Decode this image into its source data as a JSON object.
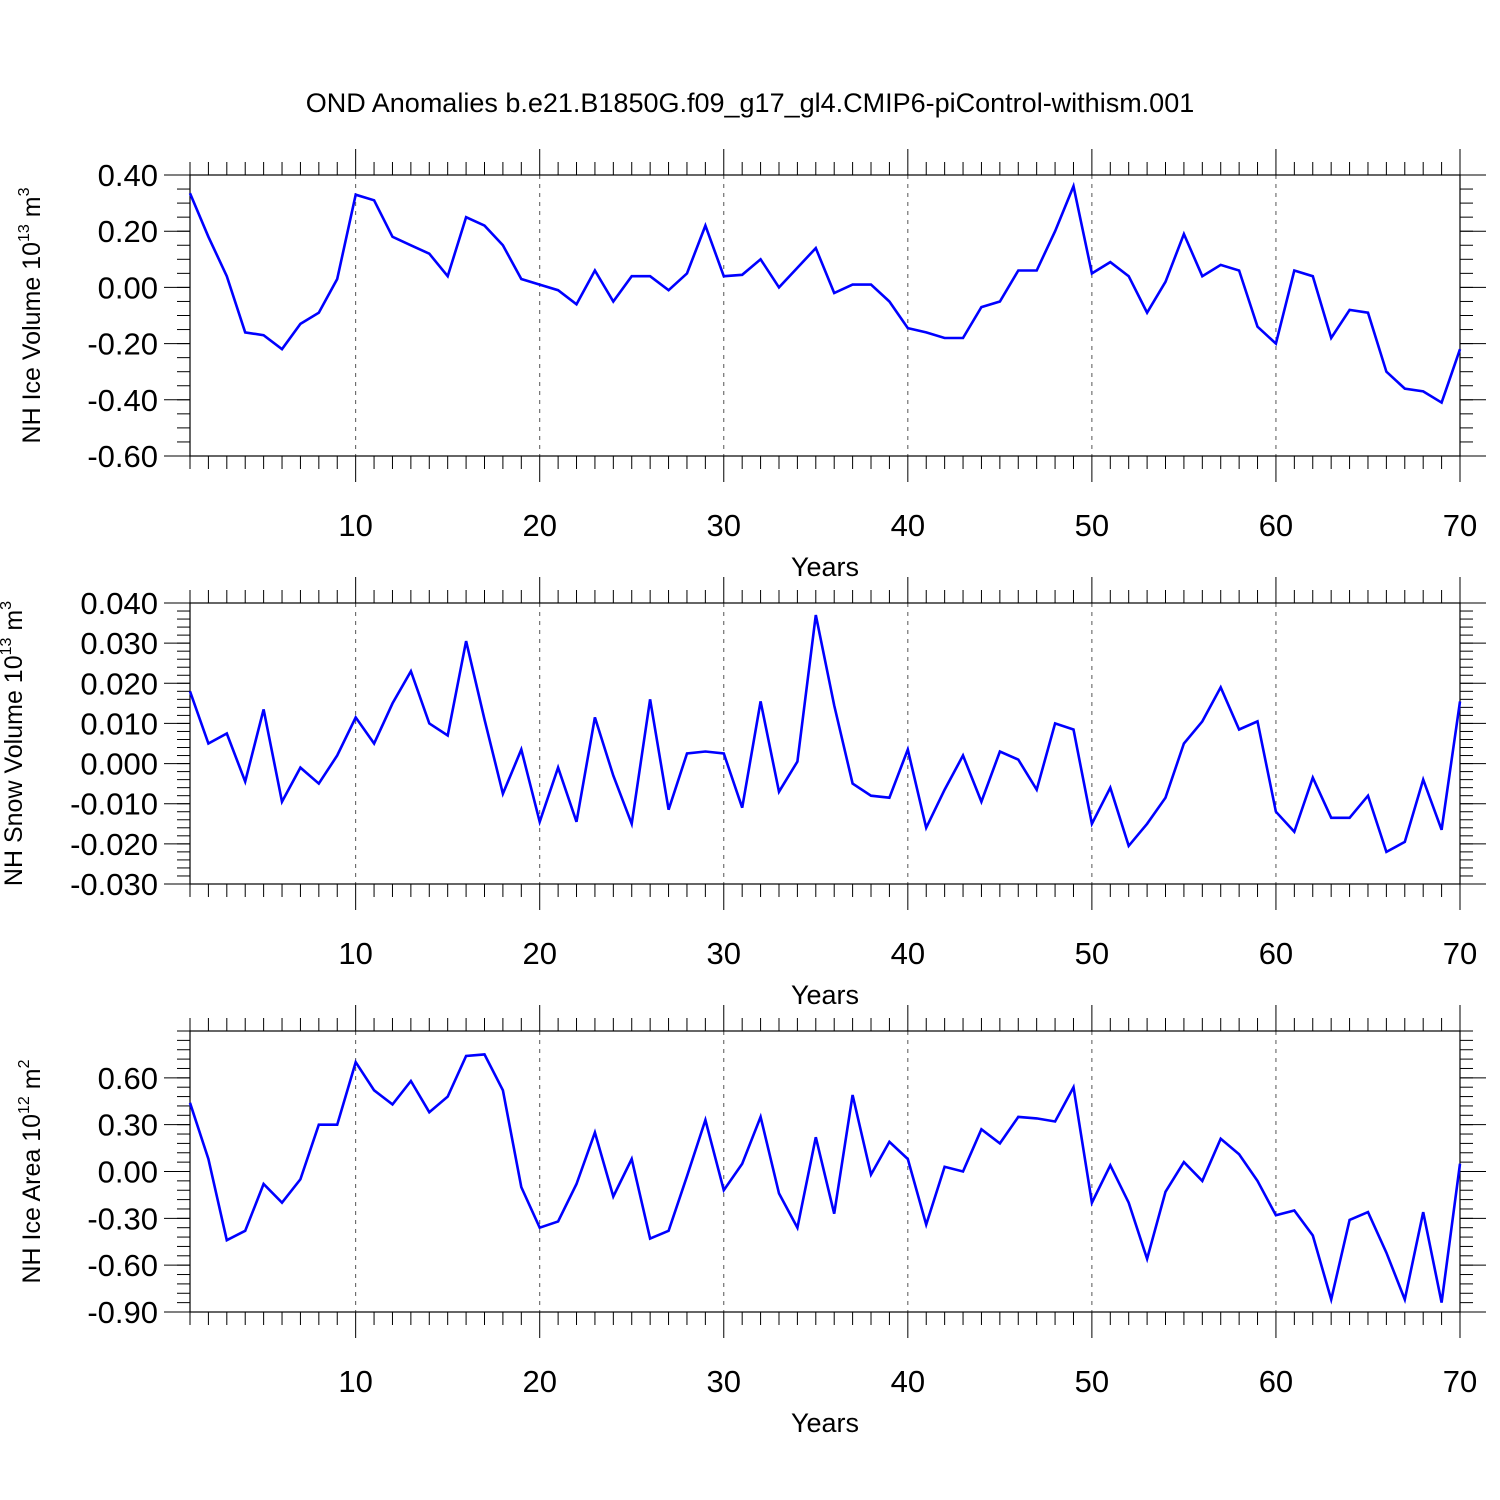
{
  "title": "OND Anomalies b.e21.B1850G.f09_g17_gl4.CMIP6-piControl-withism.001",
  "colors": {
    "line": "#0000ff",
    "axis": "#000000",
    "grid": "#555555",
    "background": "#ffffff"
  },
  "chart_data": [
    {
      "type": "line",
      "title": "OND Anomalies b.e21.B1850G.f09_g17_gl4.CMIP6-piControl-withism.001",
      "xlabel": "Years",
      "ylabel": {
        "text": "NH Ice Volume 10",
        "sup1": "13",
        "mid": " m",
        "sup2": "3"
      },
      "xlim": [
        1,
        70
      ],
      "ylim": [
        -0.6,
        0.4
      ],
      "x_ticks": [
        "10",
        "20",
        "30",
        "40",
        "50",
        "60",
        "70"
      ],
      "y_ticks": [
        "-0.60",
        "-0.40",
        "-0.20",
        "0.00",
        "0.20",
        "0.40"
      ],
      "y_tick_values": [
        -0.6,
        -0.4,
        -0.2,
        0.0,
        0.2,
        0.4
      ],
      "y_minor_step": 0.05,
      "grid": "vertical dashed at decades",
      "series": [
        {
          "name": "NH Ice Volume",
          "color": "#0000ff",
          "values": [
            0.335,
            0.18,
            0.04,
            -0.16,
            -0.17,
            -0.22,
            -0.13,
            -0.09,
            0.03,
            0.33,
            0.31,
            0.18,
            0.15,
            0.12,
            0.04,
            0.25,
            0.22,
            0.15,
            0.03,
            0.01,
            -0.01,
            -0.06,
            0.06,
            -0.05,
            0.04,
            0.04,
            -0.01,
            0.05,
            0.22,
            0.04,
            0.045,
            0.1,
            0.0,
            0.07,
            0.14,
            -0.02,
            0.01,
            0.01,
            -0.05,
            -0.145,
            -0.16,
            -0.18,
            -0.18,
            -0.07,
            -0.05,
            0.06,
            0.06,
            0.2,
            0.36,
            0.05,
            0.09,
            0.04,
            -0.09,
            0.02,
            0.19,
            0.04,
            0.08,
            0.06,
            -0.14,
            -0.2,
            0.06,
            0.04,
            -0.18,
            -0.08,
            -0.09,
            -0.3,
            -0.36,
            -0.37,
            -0.41,
            -0.22
          ]
        }
      ]
    },
    {
      "type": "line",
      "xlabel": "Years",
      "ylabel": {
        "text": "NH Snow Volume 10",
        "sup1": "13",
        "mid": " m",
        "sup2": "3"
      },
      "xlim": [
        1,
        70
      ],
      "ylim": [
        -0.03,
        0.04
      ],
      "x_ticks": [
        "10",
        "20",
        "30",
        "40",
        "50",
        "60",
        "70"
      ],
      "y_ticks": [
        "-0.030",
        "-0.020",
        "-0.010",
        "0.000",
        "0.010",
        "0.020",
        "0.030",
        "0.040"
      ],
      "y_tick_values": [
        -0.03,
        -0.02,
        -0.01,
        0.0,
        0.01,
        0.02,
        0.03,
        0.04
      ],
      "y_minor_step": 0.002,
      "grid": "vertical dashed at decades",
      "series": [
        {
          "name": "NH Snow Volume",
          "color": "#0000ff",
          "values": [
            0.018,
            0.005,
            0.0075,
            -0.0045,
            0.0135,
            -0.0095,
            -0.001,
            -0.005,
            0.002,
            0.0115,
            0.005,
            0.015,
            0.023,
            0.01,
            0.007,
            0.0305,
            0.011,
            -0.0075,
            0.0035,
            -0.0145,
            -0.001,
            -0.0145,
            0.0115,
            -0.003,
            -0.015,
            0.016,
            -0.0115,
            0.0025,
            0.003,
            0.0025,
            -0.011,
            0.0155,
            -0.007,
            0.0005,
            0.037,
            0.0145,
            -0.005,
            -0.008,
            -0.0085,
            0.0035,
            -0.016,
            -0.0065,
            0.002,
            -0.0095,
            0.003,
            0.001,
            -0.0065,
            0.01,
            0.0085,
            -0.015,
            -0.006,
            -0.0205,
            -0.015,
            -0.0085,
            0.005,
            0.0105,
            0.019,
            0.0085,
            0.0105,
            -0.012,
            -0.017,
            -0.0035,
            -0.0135,
            -0.0135,
            -0.008,
            -0.022,
            -0.0195,
            -0.004,
            -0.0165,
            0.0155
          ]
        }
      ]
    },
    {
      "type": "line",
      "xlabel": "Years",
      "ylabel": {
        "text": "NH Ice Area 10",
        "sup1": "12",
        "mid": " m",
        "sup2": "2"
      },
      "xlim": [
        1,
        70
      ],
      "ylim": [
        -0.9,
        0.9
      ],
      "x_ticks": [
        "10",
        "20",
        "30",
        "40",
        "50",
        "60",
        "70"
      ],
      "y_ticks": [
        "-0.90",
        "-0.60",
        "-0.30",
        "0.00",
        "0.30",
        "0.60"
      ],
      "y_tick_values": [
        -0.9,
        -0.6,
        -0.3,
        0.0,
        0.3,
        0.6
      ],
      "y_minor_step": 0.06,
      "grid": "vertical dashed at decades",
      "series": [
        {
          "name": "NH Ice Area",
          "color": "#0000ff",
          "values": [
            0.44,
            0.08,
            -0.44,
            -0.38,
            -0.08,
            -0.2,
            -0.05,
            0.3,
            0.3,
            0.7,
            0.52,
            0.43,
            0.58,
            0.38,
            0.48,
            0.74,
            0.75,
            0.52,
            -0.1,
            -0.36,
            -0.32,
            -0.08,
            0.25,
            -0.16,
            0.08,
            -0.43,
            -0.38,
            -0.03,
            0.33,
            -0.12,
            0.05,
            0.35,
            -0.14,
            -0.36,
            0.22,
            -0.27,
            0.49,
            -0.02,
            0.19,
            0.08,
            -0.34,
            0.03,
            0.0,
            0.27,
            0.18,
            0.35,
            0.34,
            0.32,
            0.54,
            -0.2,
            0.04,
            -0.2,
            -0.56,
            -0.13,
            0.06,
            -0.06,
            0.21,
            0.11,
            -0.06,
            -0.28,
            -0.25,
            -0.41,
            -0.82,
            -0.31,
            -0.26,
            -0.52,
            -0.82,
            -0.26,
            -0.84,
            0.05
          ]
        }
      ]
    }
  ]
}
